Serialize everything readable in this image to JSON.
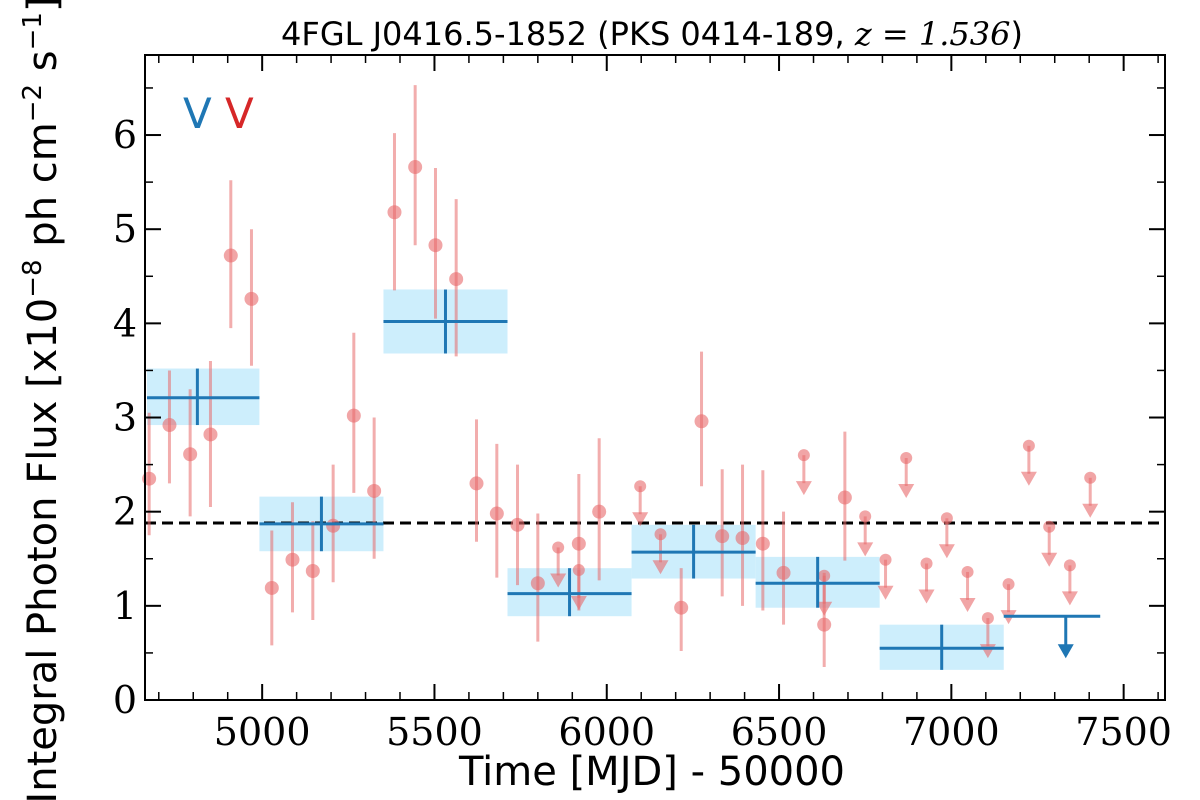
{
  "chart_data": {
    "type": "scatter",
    "title": "4FGL J0416.5-1852 (PKS 0414-189, ",
    "title_math": "z = 1.536",
    "title_close": ")",
    "xlabel": "Time [MJD] - 50000",
    "ylabel": "Integral Photon Flux [x10",
    "ylabel_exp1": "−8",
    "ylabel_mid": " ph cm",
    "ylabel_exp2": "−2",
    "ylabel_s": " s",
    "ylabel_exp3": "−1",
    "ylabel_close": "]",
    "xlim": [
      4660,
      7620
    ],
    "ylim": [
      0,
      6.85
    ],
    "xticks": [
      5000,
      5500,
      6000,
      6500,
      7000,
      7500
    ],
    "yticks": [
      0,
      1,
      2,
      3,
      4,
      5,
      6
    ],
    "mean_flux": 1.88,
    "markers": [
      {
        "label": "V",
        "color": "#1f77b4"
      },
      {
        "label": "V",
        "color": "#d62728"
      }
    ],
    "colors": {
      "points": "#e8696a",
      "bins": "#1f77b4",
      "bin_fill": "#cdeefc",
      "mean_line": "#000000"
    },
    "fine_points": [
      {
        "x": 4672,
        "y": 2.35,
        "lo": 1.75,
        "hi": 3.05
      },
      {
        "x": 4731,
        "y": 2.92,
        "lo": 2.3,
        "hi": 3.5
      },
      {
        "x": 4791,
        "y": 2.61,
        "lo": 1.95,
        "hi": 3.3
      },
      {
        "x": 4850,
        "y": 2.82,
        "lo": 2.05,
        "hi": 3.6
      },
      {
        "x": 4909,
        "y": 4.72,
        "lo": 3.95,
        "hi": 5.52
      },
      {
        "x": 4969,
        "y": 4.26,
        "lo": 3.55,
        "hi": 5.0
      },
      {
        "x": 5028,
        "y": 1.19,
        "lo": 0.58,
        "hi": 1.8
      },
      {
        "x": 5088,
        "y": 1.49,
        "lo": 0.93,
        "hi": 2.1
      },
      {
        "x": 5147,
        "y": 1.37,
        "lo": 0.85,
        "hi": 1.9
      },
      {
        "x": 5206,
        "y": 1.85,
        "lo": 1.25,
        "hi": 2.5
      },
      {
        "x": 5266,
        "y": 3.02,
        "lo": 2.2,
        "hi": 3.9
      },
      {
        "x": 5325,
        "y": 2.22,
        "lo": 1.5,
        "hi": 3.0
      },
      {
        "x": 5384,
        "y": 5.18,
        "lo": 4.35,
        "hi": 6.02
      },
      {
        "x": 5444,
        "y": 5.66,
        "lo": 4.83,
        "hi": 6.53
      },
      {
        "x": 5503,
        "y": 4.83,
        "lo": 4.05,
        "hi": 5.65
      },
      {
        "x": 5563,
        "y": 4.47,
        "lo": 3.65,
        "hi": 5.32
      },
      {
        "x": 5622,
        "y": 2.3,
        "lo": 1.68,
        "hi": 2.98
      },
      {
        "x": 5681,
        "y": 1.98,
        "lo": 1.3,
        "hi": 2.72
      },
      {
        "x": 5741,
        "y": 1.86,
        "lo": 1.22,
        "hi": 2.5
      },
      {
        "x": 5800,
        "y": 1.24,
        "lo": 0.62,
        "hi": 1.98
      },
      {
        "x": 5919,
        "y": 1.66,
        "lo": 0.95,
        "hi": 2.4
      },
      {
        "x": 5978,
        "y": 2.0,
        "lo": 1.27,
        "hi": 2.78
      },
      {
        "x": 6216,
        "y": 0.98,
        "lo": 0.52,
        "hi": 1.4
      },
      {
        "x": 6275,
        "y": 2.96,
        "lo": 2.27,
        "hi": 3.7
      },
      {
        "x": 6335,
        "y": 1.74,
        "lo": 1.1,
        "hi": 2.45
      },
      {
        "x": 6394,
        "y": 1.72,
        "lo": 1.0,
        "hi": 2.5
      },
      {
        "x": 6453,
        "y": 1.66,
        "lo": 0.95,
        "hi": 2.44
      },
      {
        "x": 6513,
        "y": 1.35,
        "lo": 0.8,
        "hi": 2.0
      },
      {
        "x": 6631,
        "y": 0.8,
        "lo": 0.35,
        "hi": 1.35
      },
      {
        "x": 6691,
        "y": 2.15,
        "lo": 1.48,
        "hi": 2.85
      }
    ],
    "upper_limits": [
      {
        "x": 5859,
        "y": 1.62
      },
      {
        "x": 5919,
        "y": 1.38
      },
      {
        "x": 6097,
        "y": 2.27
      },
      {
        "x": 6156,
        "y": 1.76
      },
      {
        "x": 6572,
        "y": 2.6
      },
      {
        "x": 6631,
        "y": 1.32
      },
      {
        "x": 6750,
        "y": 1.95
      },
      {
        "x": 6809,
        "y": 1.49
      },
      {
        "x": 6869,
        "y": 2.57
      },
      {
        "x": 6928,
        "y": 1.45
      },
      {
        "x": 6987,
        "y": 1.93
      },
      {
        "x": 7047,
        "y": 1.36
      },
      {
        "x": 7106,
        "y": 0.87
      },
      {
        "x": 7166,
        "y": 1.23
      },
      {
        "x": 7225,
        "y": 2.7
      },
      {
        "x": 7284,
        "y": 1.84
      },
      {
        "x": 7344,
        "y": 1.43
      },
      {
        "x": 7403,
        "y": 2.36
      }
    ],
    "bins": [
      {
        "x0": 4632,
        "x1": 4992,
        "xc": 4812,
        "y": 3.21,
        "lo": 2.92,
        "hi": 3.52
      },
      {
        "x0": 4992,
        "x1": 5352,
        "xc": 5172,
        "y": 1.87,
        "lo": 1.58,
        "hi": 2.16
      },
      {
        "x0": 5352,
        "x1": 5712,
        "xc": 5532,
        "y": 4.02,
        "lo": 3.68,
        "hi": 4.36
      },
      {
        "x0": 5712,
        "x1": 6072,
        "xc": 5892,
        "y": 1.13,
        "lo": 0.89,
        "hi": 1.4
      },
      {
        "x0": 6072,
        "x1": 6432,
        "xc": 6252,
        "y": 1.57,
        "lo": 1.29,
        "hi": 1.86
      },
      {
        "x0": 6432,
        "x1": 6792,
        "xc": 6612,
        "y": 1.24,
        "lo": 0.98,
        "hi": 1.52
      },
      {
        "x0": 6792,
        "x1": 7152,
        "xc": 6972,
        "y": 0.55,
        "lo": 0.32,
        "hi": 0.8
      },
      {
        "x0": 7152,
        "x1": 7432,
        "xc": 7332,
        "y": 0.89,
        "upper_limit": true
      }
    ]
  }
}
